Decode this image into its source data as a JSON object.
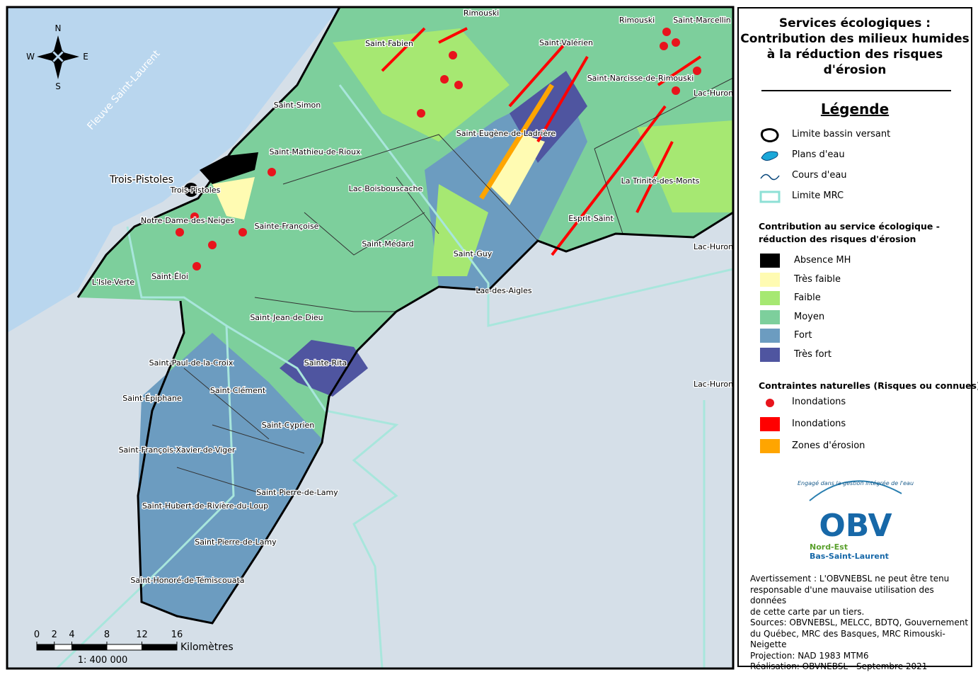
{
  "legend": {
    "title_lines": [
      "Services écologiques :",
      "Contribution des milieux humides",
      "à la réduction des risques",
      "d'érosion"
    ],
    "heading": "Légende",
    "base_items": [
      "Limite bassin versant",
      "Plans d'eau",
      "Cours d'eau",
      "Limite MRC"
    ],
    "section_lines": [
      "Contribution au service écologique -",
      "réduction des risques d'érosion"
    ],
    "classes": [
      {
        "label": "Absence MH",
        "color": "#000000"
      },
      {
        "label": "Très faible",
        "color": "#fffbb2"
      },
      {
        "label": "Faible",
        "color": "#a6e872"
      },
      {
        "label": "Moyen",
        "color": "#7dcf9c"
      },
      {
        "label": "Fort",
        "color": "#6c9cc0"
      },
      {
        "label": "Très fort",
        "color": "#4f55a0"
      }
    ],
    "constraints_title": "Contraintes naturelles (Risques ou connues)",
    "constraints": [
      {
        "label": "Inondations",
        "color": "#e8141c"
      },
      {
        "label": "Inondations",
        "color": "#ff0000"
      },
      {
        "label": "Zones d'érosion",
        "color": "#ffa500"
      }
    ]
  },
  "logo": {
    "slogan": "Engagé dans la gestion intégrée de l'eau",
    "name": "OBV",
    "line1": "Nord-Est",
    "line2": "Bas-Saint-Laurent"
  },
  "notes": [
    "Avertissement : L'OBVNEBSL ne peut être tenu",
    "responsable d'une mauvaise utilisation des données",
    "de cette carte par un tiers.",
    "Sources: OBVNEBSL, MELCC, BDTQ, Gouvernement",
    "du Québec, MRC des Basques, MRC Rimouski-Neigette",
    "Projection: NAD 1983 MTM6",
    "Réalisation: OBVNEBSL - Septembre 2021"
  ],
  "map": {
    "compass": {
      "n": "N",
      "s": "S",
      "e": "E",
      "w": "W"
    },
    "river": "Fleuve Saint-Laurent",
    "city": "Trois-Pistoles",
    "labels": [
      "Rimouski",
      "Rimouski",
      "Saint-Marcellin",
      "Saint-Fabien",
      "Saint-Valérien",
      "Saint-Narcisse-de-Rimouski",
      "Lac-Huron",
      "Saint-Simon",
      "Saint-Eugène-de-Ladrière",
      "Saint-Mathieu-de-Rioux",
      "Trois-Pistoles",
      "Lac-Boisbouscache",
      "La Trinité-des-Monts",
      "Esprit-Saint",
      "Notre-Dame-des-Neiges",
      "Sainte-Françoise",
      "Saint-Médard",
      "Lac-Huron",
      "Saint-Guy",
      "Saint-Éloi",
      "L'Isle-Verte",
      "Lac-des-Aigles",
      "Saint-Jean-de-Dieu",
      "Sainte-Rita",
      "Saint-Paul-de-la-Croix",
      "Saint-Clément",
      "Lac-Huron",
      "Saint-Épiphane",
      "Saint-Cyprien",
      "Saint-François-Xavier-de-Viger",
      "Saint-Pierre-de-Lamy",
      "Saint-Hubert-de-Rivière-du-Loup",
      "Saint-Pierre-de-Lamy",
      "Saint-Honoré-de-Témiscouata"
    ],
    "scale": {
      "ticks": [
        0,
        2,
        4,
        8,
        12,
        16
      ],
      "unit": "Kilomètres",
      "ratio": "1: 400 000"
    }
  }
}
